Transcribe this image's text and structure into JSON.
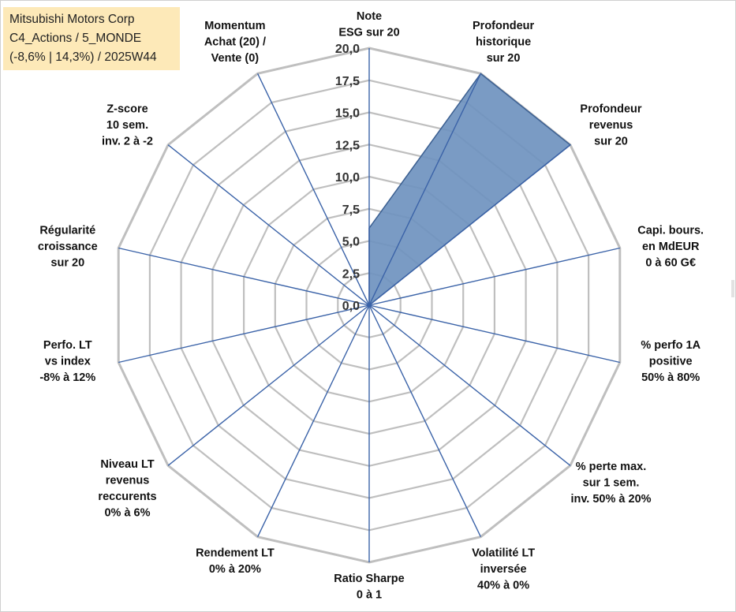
{
  "info_box": {
    "line1": "Mitsubishi Motors Corp",
    "line2": "C4_Actions / 5_MONDE",
    "line3": "(-8,6% | 14,3%) / 2025W44",
    "background": "#fde9b8"
  },
  "chart_data": {
    "type": "radar",
    "title": "Mitsubishi Motors Corp",
    "rmin": 0,
    "rmax": 20,
    "tick_step": 2.5,
    "grid_levels": 8,
    "tick_labels": [
      "0,0",
      "2,5",
      "5,0",
      "7,5",
      "10,0",
      "12,5",
      "15,0",
      "17,5",
      "20,0"
    ],
    "axes": [
      [
        "Note",
        "ESG sur 20"
      ],
      [
        "Profondeur",
        "historique",
        "sur 20"
      ],
      [
        "Profondeur",
        "revenus",
        "sur 20"
      ],
      [
        "Capi. bours.",
        "en MdEUR",
        "0 à 60 G€"
      ],
      [
        "% perfo 1A",
        "positive",
        "50% à 80%"
      ],
      [
        "% perte max.",
        "sur 1 sem.",
        "inv. 50% à 20%"
      ],
      [
        "Volatilité LT",
        "inversée",
        "40% à 0%"
      ],
      [
        "Ratio Sharpe",
        "0 à 1"
      ],
      [
        "Rendement LT",
        "0% à 20%"
      ],
      [
        "Niveau LT",
        "revenus",
        "reccurents",
        "0% à 6%"
      ],
      [
        "Perfo. LT",
        "vs index",
        "-8% à 12%"
      ],
      [
        "Régularité",
        "croissance",
        "sur 20"
      ],
      [
        "Z-score",
        "10 sem.",
        "inv. 2 à -2"
      ],
      [
        "Momentum",
        "Achat (20) /",
        "Vente (0)"
      ]
    ],
    "series": [
      {
        "name": "Mitsubishi Motors Corp",
        "values": [
          6,
          20,
          20,
          0,
          0,
          0,
          0,
          0,
          0,
          0,
          0,
          0,
          0,
          0
        ],
        "fill": "#6f93bf",
        "stroke": "#3b5f91"
      }
    ],
    "colors": {
      "grid": "#bfbfbf",
      "spokes": "#3b63a8",
      "text": "#111111"
    }
  }
}
